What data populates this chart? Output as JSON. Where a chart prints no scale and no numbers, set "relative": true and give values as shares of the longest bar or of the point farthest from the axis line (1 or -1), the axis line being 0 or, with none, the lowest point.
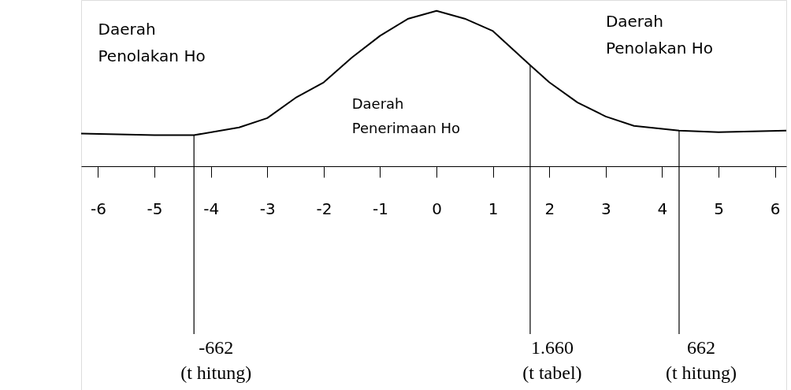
{
  "chart_data": {
    "type": "line",
    "relative": true,
    "x": [
      -6.3,
      -5,
      -4.3,
      -3.5,
      -3,
      -2.5,
      -2,
      -1.5,
      -1,
      -0.5,
      0,
      0.5,
      1,
      1.66,
      2,
      2.5,
      3,
      3.5,
      4.3,
      5,
      6.2
    ],
    "series": [
      {
        "color": "#000000",
        "values": [
          0.21,
          0.2,
          0.2,
          0.25,
          0.31,
          0.44,
          0.54,
          0.7,
          0.84,
          0.95,
          1,
          0.95,
          0.87,
          0.65,
          0.54,
          0.41,
          0.32,
          0.26,
          0.23,
          0.22,
          0.23
        ]
      }
    ],
    "xlim": [
      -6.3,
      6.2
    ],
    "xticks": [
      -6,
      -5,
      -4,
      -3,
      -2,
      -1,
      0,
      1,
      2,
      3,
      4,
      5,
      6
    ],
    "ref_lines": [
      {
        "axis": "x",
        "value": -4.3,
        "label": "-662\n(t hitung)",
        "color": "#000000"
      },
      {
        "axis": "x",
        "value": 1.66,
        "label": "1.660\n(t tabel)",
        "color": "#000000"
      },
      {
        "axis": "x",
        "value": 4.3,
        "label": "662\n(t hitung)",
        "color": "#000000"
      }
    ],
    "annotations": [
      "Daerah\nPenolakan Ho",
      "Daerah\nPenolakan Ho",
      "Daerah\nPenerimaan Ho"
    ],
    "grid": false
  }
}
